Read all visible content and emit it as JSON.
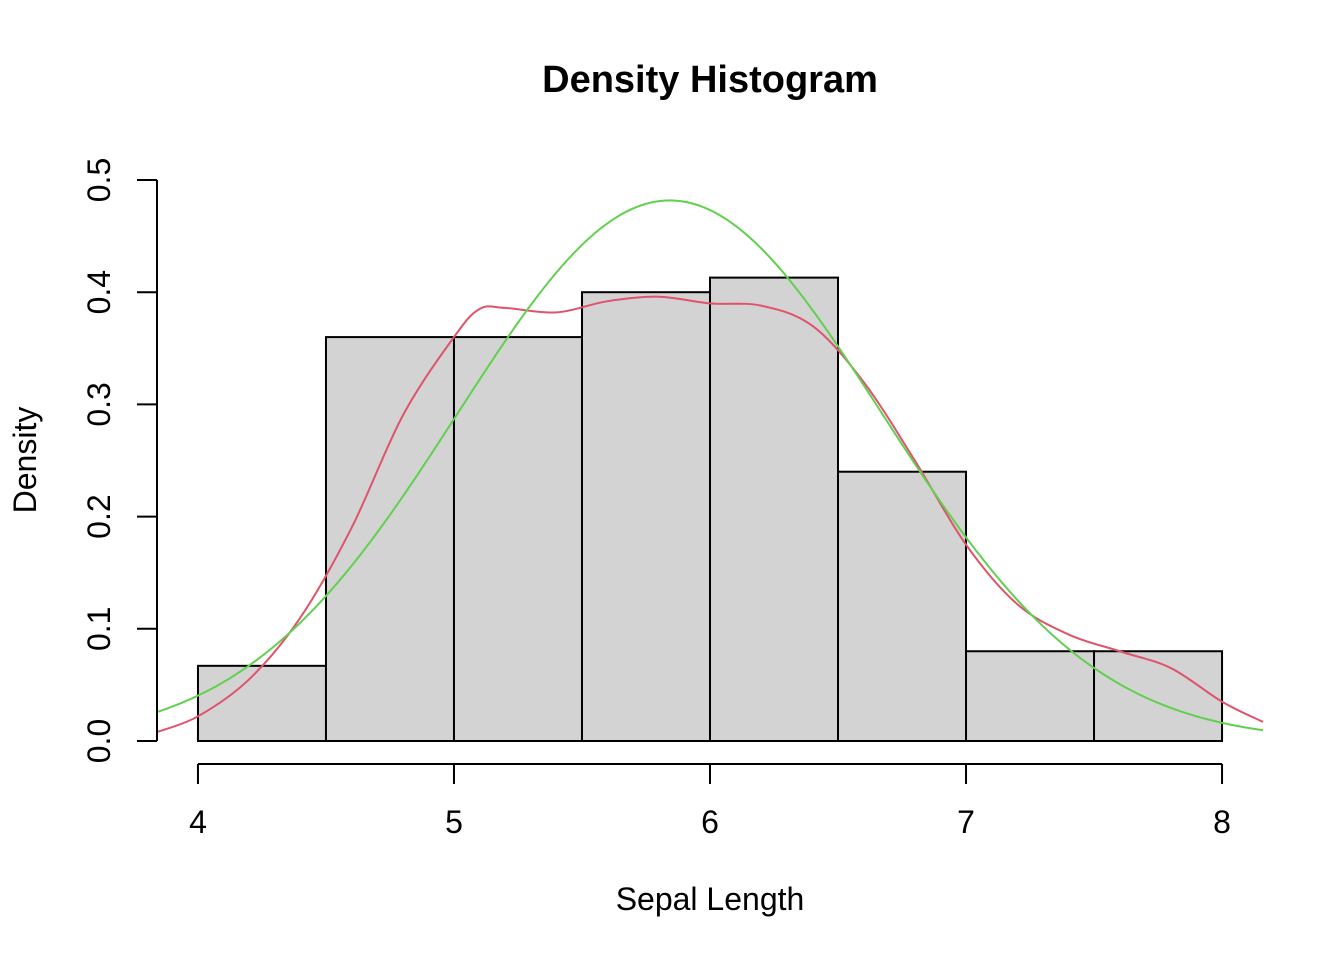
{
  "chart_data": {
    "type": "bar",
    "title": "Density Histogram",
    "xlabel": "Sepal Length",
    "ylabel": "Density",
    "xlim": [
      3.84,
      8.16
    ],
    "ylim": [
      0,
      0.5
    ],
    "x_ticks": [
      "4",
      "5",
      "6",
      "7",
      "8"
    ],
    "y_ticks": [
      "0.0",
      "0.1",
      "0.2",
      "0.3",
      "0.4",
      "0.5"
    ],
    "bins": [
      {
        "from": 4.0,
        "to": 4.5,
        "density": 0.067
      },
      {
        "from": 4.5,
        "to": 5.0,
        "density": 0.36
      },
      {
        "from": 5.0,
        "to": 5.5,
        "density": 0.36
      },
      {
        "from": 5.5,
        "to": 6.0,
        "density": 0.4
      },
      {
        "from": 6.0,
        "to": 6.5,
        "density": 0.413
      },
      {
        "from": 6.5,
        "to": 7.0,
        "density": 0.24
      },
      {
        "from": 7.0,
        "to": 7.5,
        "density": 0.08
      },
      {
        "from": 7.5,
        "to": 8.0,
        "density": 0.08
      }
    ],
    "series": [
      {
        "kind": "kernel-density",
        "color": "#DF536B",
        "points": [
          [
            3.84,
            0.008
          ],
          [
            4.0,
            0.022
          ],
          [
            4.2,
            0.055
          ],
          [
            4.4,
            0.11
          ],
          [
            4.6,
            0.19
          ],
          [
            4.8,
            0.29
          ],
          [
            5.0,
            0.36
          ],
          [
            5.1,
            0.385
          ],
          [
            5.2,
            0.386
          ],
          [
            5.4,
            0.382
          ],
          [
            5.6,
            0.392
          ],
          [
            5.8,
            0.396
          ],
          [
            6.0,
            0.39
          ],
          [
            6.2,
            0.388
          ],
          [
            6.4,
            0.37
          ],
          [
            6.6,
            0.32
          ],
          [
            6.8,
            0.25
          ],
          [
            7.0,
            0.175
          ],
          [
            7.2,
            0.122
          ],
          [
            7.4,
            0.095
          ],
          [
            7.6,
            0.08
          ],
          [
            7.8,
            0.065
          ],
          [
            8.0,
            0.035
          ],
          [
            8.16,
            0.017
          ]
        ]
      },
      {
        "kind": "normal-fit",
        "color": "#61D04F",
        "mean": 5.843,
        "sd": 0.828
      }
    ]
  }
}
